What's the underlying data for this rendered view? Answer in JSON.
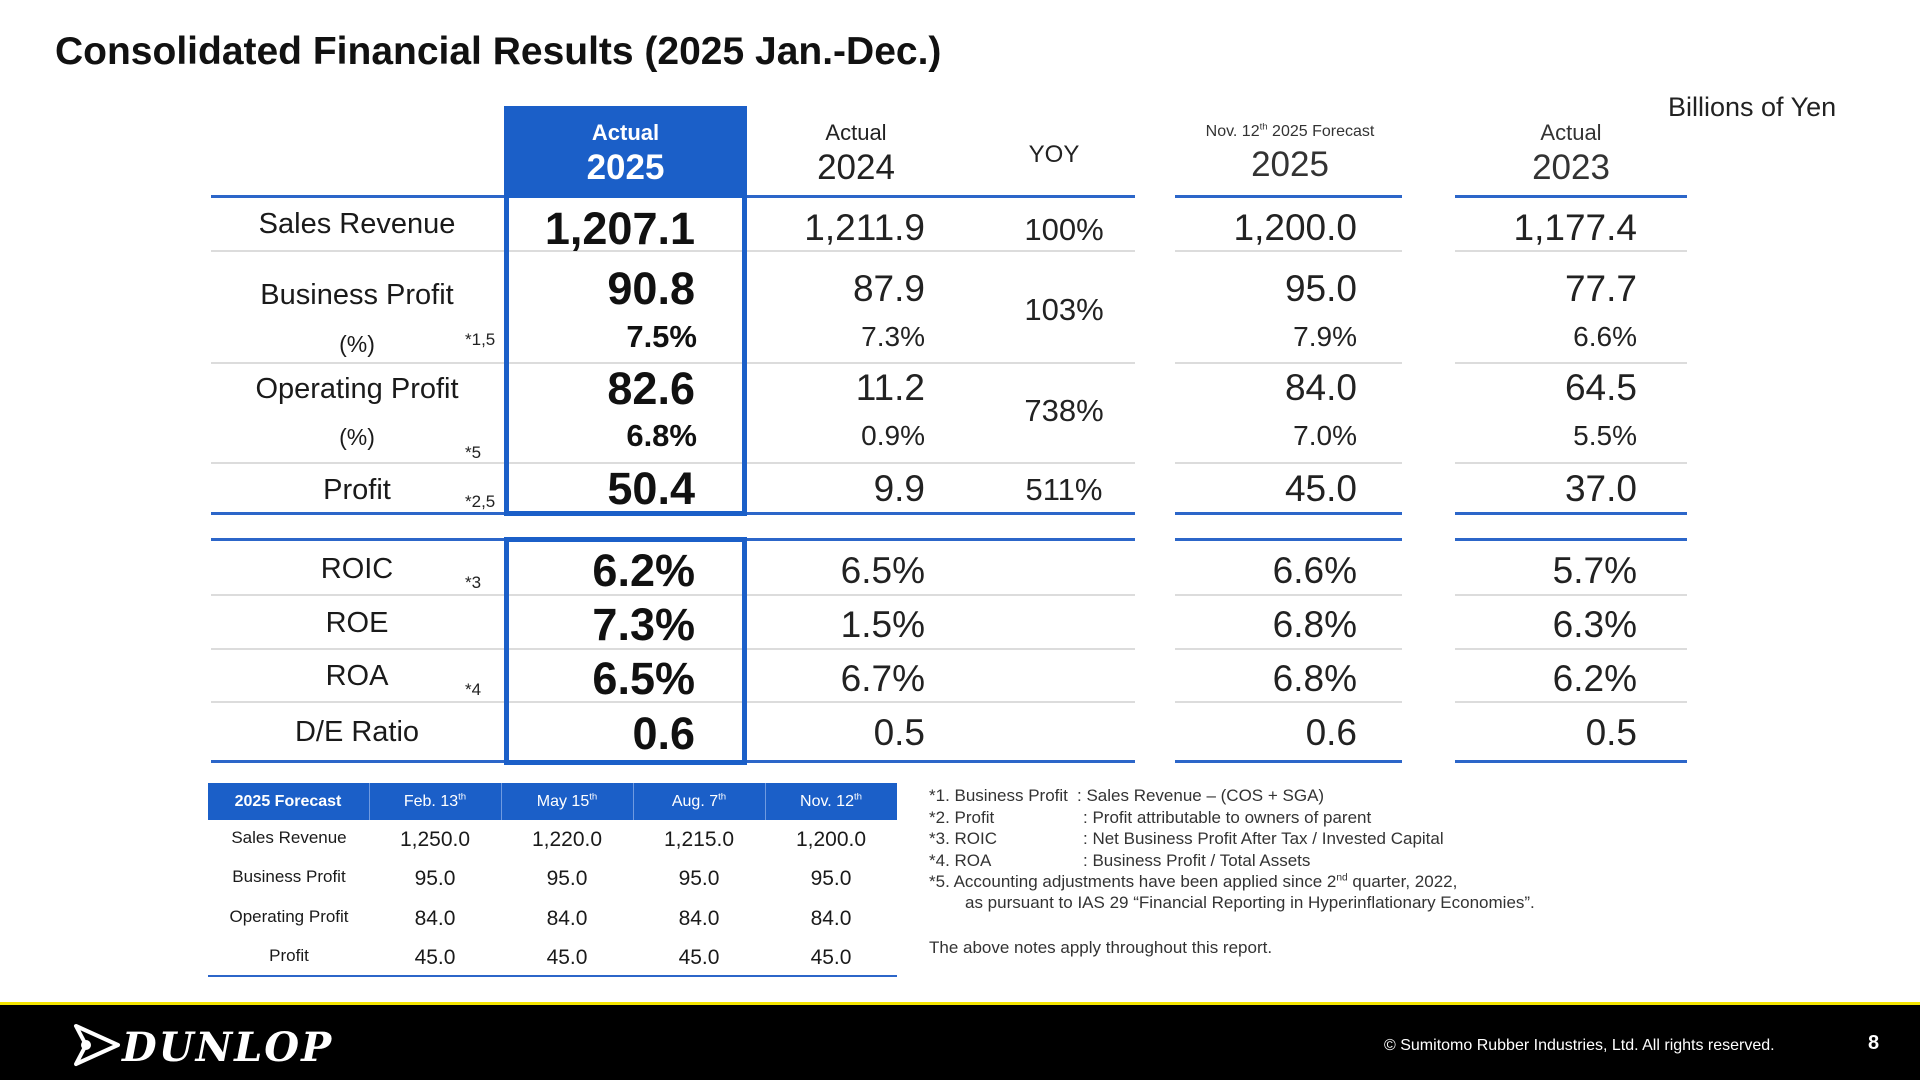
{
  "title": "Consolidated Financial Results (2025 Jan.-Dec.)",
  "unit": "Billions of Yen",
  "columns": {
    "c1": {
      "sub": "Actual",
      "year": "2025"
    },
    "c2": {
      "sub": "Actual",
      "year": "2024"
    },
    "yoy": "YOY",
    "c3": {
      "sub_pre": "Nov. 12",
      "sub_sup": "th",
      "sub_post": " 2025 Forecast",
      "year": "2025"
    },
    "c4": {
      "sub": "Actual",
      "year": "2023"
    }
  },
  "rows": {
    "sales": {
      "label": "Sales Revenue",
      "c1": "1,207.1",
      "c2": "1,211.9",
      "yoy": "100%",
      "c3": "1,200.0",
      "c4": "1,177.4"
    },
    "bp": {
      "label": "Business Profit",
      "pct_label": "(%)",
      "note": "*1,5",
      "c1": "90.8",
      "c1p": "7.5%",
      "c2": "87.9",
      "c2p": "7.3%",
      "yoy": "103%",
      "c3": "95.0",
      "c3p": "7.9%",
      "c4": "77.7",
      "c4p": "6.6%"
    },
    "op": {
      "label": "Operating Profit",
      "pct_label": "(%)",
      "note": "*5",
      "c1": "82.6",
      "c1p": "6.8%",
      "c2": "11.2",
      "c2p": "0.9%",
      "yoy": "738%",
      "c3": "84.0",
      "c3p": "7.0%",
      "c4": "64.5",
      "c4p": "5.5%"
    },
    "profit": {
      "label": "Profit",
      "note": "*2,5",
      "c1": "50.4",
      "c2": "9.9",
      "yoy": "511%",
      "c3": "45.0",
      "c4": "37.0"
    },
    "roic": {
      "label": "ROIC",
      "note": "*3",
      "c1": "6.2%",
      "c2": "6.5%",
      "c3": "6.6%",
      "c4": "5.7%"
    },
    "roe": {
      "label": "ROE",
      "c1": "7.3%",
      "c2": "1.5%",
      "c3": "6.8%",
      "c4": "6.3%"
    },
    "roa": {
      "label": "ROA",
      "note": "*4",
      "c1": "6.5%",
      "c2": "6.7%",
      "c3": "6.8%",
      "c4": "6.2%"
    },
    "de": {
      "label": "D/E Ratio",
      "c1": "0.6",
      "c2": "0.5",
      "c3": "0.6",
      "c4": "0.5"
    }
  },
  "forecast_table": {
    "header": "2025 Forecast",
    "dates": [
      {
        "base": "Feb. 13",
        "sup": "th"
      },
      {
        "base": "May 15",
        "sup": "th"
      },
      {
        "base": "Aug. 7",
        "sup": "th"
      },
      {
        "base": "Nov. 12",
        "sup": "th"
      }
    ],
    "rows": [
      {
        "label": "Sales Revenue",
        "values": [
          "1,250.0",
          "1,220.0",
          "1,215.0",
          "1,200.0"
        ]
      },
      {
        "label": "Business Profit",
        "values": [
          "95.0",
          "95.0",
          "95.0",
          "95.0"
        ]
      },
      {
        "label": "Operating Profit",
        "values": [
          "84.0",
          "84.0",
          "84.0",
          "84.0"
        ]
      },
      {
        "label": "Profit",
        "values": [
          "45.0",
          "45.0",
          "45.0",
          "45.0"
        ]
      }
    ]
  },
  "footnotes": {
    "n1a": "*1. Business Profit",
    "n1b": ": Sales Revenue – (COS + SGA)",
    "n2a": "*2. Profit",
    "n2b": ": Profit attributable to owners of parent",
    "n3a": "*3. ROIC",
    "n3b": ": Net Business Profit After Tax  /  Invested Capital",
    "n4a": "*4. ROA",
    "n4b": ": Business Profit / Total Assets",
    "n5_pre": "*5. Accounting adjustments have been applied since 2",
    "n5_sup": "nd",
    "n5_post": " quarter, 2022,",
    "n5_line2": "as pursuant to IAS 29 “Financial Reporting  in Hyperinflationary Economies”.",
    "general": "The above notes apply throughout this report."
  },
  "footer": {
    "brand": "DUNLOP",
    "copyright": "© Sumitomo Rubber Industries, Ltd. All rights reserved.",
    "page_number": "8"
  },
  "colors": {
    "accent": "#1b5fc8",
    "footer_bg": "#000000",
    "footer_line": "#f4e500"
  }
}
